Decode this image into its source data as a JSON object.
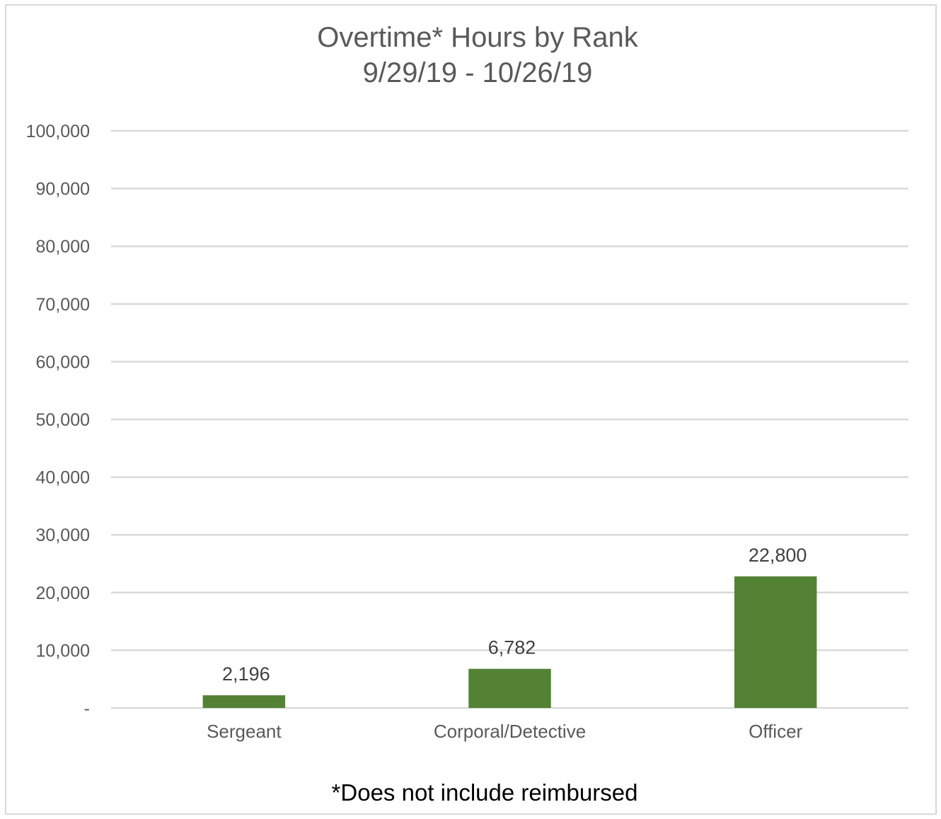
{
  "chart_data": {
    "type": "bar",
    "title": "Overtime* Hours by Rank",
    "subtitle": "9/29/19 - 10/26/19",
    "categories": [
      "Sergeant",
      "Corporal/Detective",
      "Officer"
    ],
    "values": [
      2196,
      6782,
      22800
    ],
    "value_labels": [
      "2,196",
      "6,782",
      "22,800"
    ],
    "ylim": [
      0,
      100000
    ],
    "y_ticks": [
      0,
      10000,
      20000,
      30000,
      40000,
      50000,
      60000,
      70000,
      80000,
      90000,
      100000
    ],
    "y_tick_labels": [
      "-",
      "10,000",
      "20,000",
      "30,000",
      "40,000",
      "50,000",
      "60,000",
      "70,000",
      "80,000",
      "90,000",
      "100,000"
    ],
    "grid": true,
    "legend": "none",
    "bar_color": "#548235",
    "gridline_color": "#d9d9d9",
    "note": "*Does not include  reimbursed"
  }
}
